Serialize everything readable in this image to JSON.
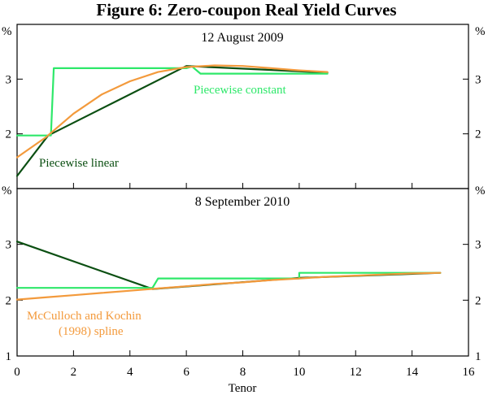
{
  "chart_data": {
    "type": "line",
    "title": "Figure 6: Zero-coupon Real Yield Curves",
    "xlabel": "Tenor",
    "xlim": [
      0,
      16
    ],
    "x_ticks": [
      0,
      2,
      4,
      6,
      8,
      10,
      12,
      14,
      16
    ],
    "ylabel": "%",
    "colors": {
      "piecewise_linear": "#0b4f12",
      "piecewise_constant": "#2ee86a",
      "spline": "#f39a3c"
    },
    "panels": [
      {
        "title": "12 August 2009",
        "ylim": [
          1,
          4
        ],
        "y_ticks": [
          2,
          3
        ],
        "series": [
          {
            "name": "Piecewise linear",
            "key": "piecewise_linear",
            "x": [
              0,
              1.1,
              6,
              11
            ],
            "y": [
              1.23,
              1.97,
              3.24,
              3.12
            ]
          },
          {
            "name": "Piecewise constant",
            "key": "piecewise_constant",
            "x": [
              0,
              1.2,
              1.3,
              6,
              6.2,
              6.5,
              11
            ],
            "y": [
              1.97,
              1.97,
              3.2,
              3.2,
              3.23,
              3.1,
              3.1
            ]
          },
          {
            "name": "McCulloch and Kochin (1998) spline",
            "key": "spline",
            "x": [
              0,
              1,
              2,
              3,
              4,
              5,
              6,
              7,
              8,
              9,
              10,
              11
            ],
            "y": [
              1.57,
              1.93,
              2.37,
              2.72,
              2.96,
              3.13,
              3.22,
              3.25,
              3.24,
              3.2,
              3.16,
              3.13
            ]
          }
        ],
        "annotations": [
          "Piecewise constant",
          "Piecewise linear"
        ]
      },
      {
        "title": "8 September 2010",
        "ylim": [
          1,
          4
        ],
        "y_ticks": [
          1,
          2,
          3
        ],
        "series": [
          {
            "name": "Piecewise linear",
            "key": "piecewise_linear",
            "x": [
              0,
              4.8,
              10,
              15
            ],
            "y": [
              3.05,
              2.2,
              2.4,
              2.49
            ]
          },
          {
            "name": "Piecewise constant",
            "key": "piecewise_constant",
            "x": [
              0,
              4.8,
              5,
              10,
              10,
              15
            ],
            "y": [
              2.22,
              2.22,
              2.39,
              2.39,
              2.49,
              2.49
            ]
          },
          {
            "name": "McCulloch and Kochin (1998) spline",
            "key": "spline",
            "x": [
              0,
              1,
              2,
              3,
              4,
              5,
              6,
              7,
              8,
              9,
              10,
              11,
              12,
              13,
              14,
              15
            ],
            "y": [
              2.01,
              2.05,
              2.09,
              2.13,
              2.17,
              2.21,
              2.25,
              2.29,
              2.32,
              2.36,
              2.39,
              2.42,
              2.44,
              2.46,
              2.48,
              2.49
            ]
          }
        ],
        "annotations": [
          "McCulloch and Kochin",
          "(1998) spline"
        ]
      }
    ]
  }
}
